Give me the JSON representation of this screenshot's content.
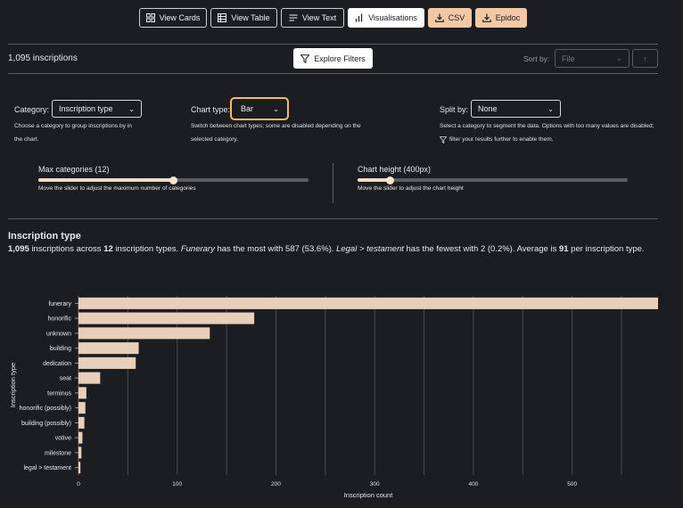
{
  "toolbar": {
    "view_cards": "View Cards",
    "view_table": "View Table",
    "view_text": "View Text",
    "visualisations": "Visualisations",
    "csv": "CSV",
    "epidoc": "Epidoc"
  },
  "results": {
    "count_text": "1,095 inscriptions",
    "explore_filters": "Explore Filters",
    "sort_label": "Sort by:",
    "sort_value": "File"
  },
  "controls": {
    "category_label": "Category:",
    "category_value": "Inscription type",
    "category_help_1": "Choose a category to group inscriptions by in",
    "category_help_2": "the chart.",
    "chart_type_label": "Chart type:",
    "chart_type_value": "Bar",
    "chart_type_help_1": "Switch between chart types; some are disabled depending on the",
    "chart_type_help_2": "selected category.",
    "split_label": "Split by:",
    "split_value": "None",
    "split_help_1": "Select a category to segment the data. Options with too many values are disabled;",
    "split_help_2": "filter your results further to enable them.",
    "max_categories_label": "Max categories (12)",
    "max_categories_help": "Move the slider to adjust the maximum number of categories",
    "max_categories_fraction": 0.5,
    "chart_height_label": "Chart height (400px)",
    "chart_height_help": "Move the slider to adjust the chart height",
    "chart_height_fraction": 0.12
  },
  "summary": {
    "heading": "Inscription type",
    "total": "1,095",
    "t1": " inscriptions across ",
    "types": "12",
    "t2": " inscription types. ",
    "most_name": "Funerary",
    "t3": " has the most with 587 (53.6%). ",
    "fewest_name": "Legal > testament",
    "t4": " has the fewest with 2 (0.2%). Average is ",
    "average": "91",
    "t5": " per inscription type."
  },
  "colors": {
    "background": "#1b1d21",
    "bar": "#e8cfb9",
    "accent": "#f2c9a4",
    "focus": "#f0c060"
  },
  "chart_data": {
    "type": "bar",
    "orientation": "horizontal",
    "categories": [
      "funerary",
      "honorific",
      "unknown",
      "building",
      "dedication",
      "seat",
      "terminus",
      "honorific (possibly)",
      "building (possibly)",
      "votive",
      "milestone",
      "legal > testament"
    ],
    "values": [
      587,
      178,
      133,
      61,
      58,
      22,
      8,
      7,
      6,
      4,
      3,
      2
    ],
    "xlabel": "Inscription count",
    "ylabel": "Inscription type",
    "xticks": [
      0,
      100,
      200,
      300,
      400,
      500
    ],
    "xlim": [
      0,
      587
    ],
    "grid": true
  }
}
